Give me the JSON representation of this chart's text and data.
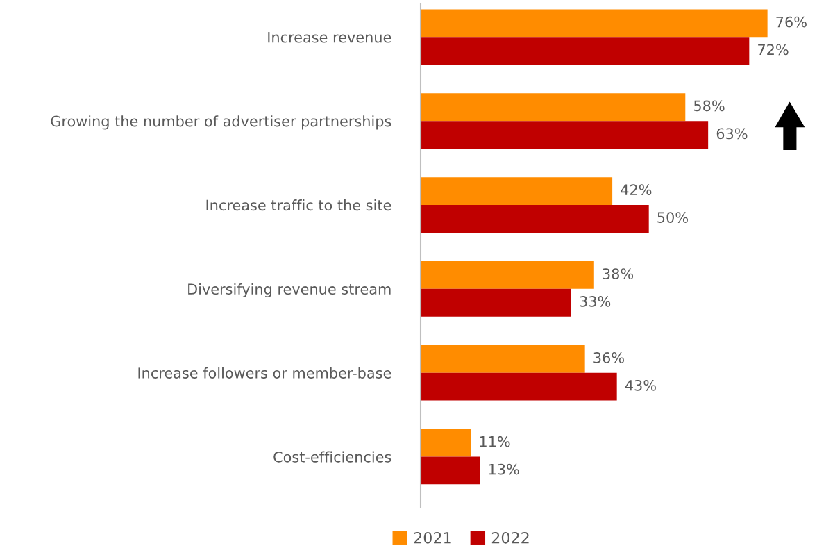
{
  "chart_data": {
    "type": "bar",
    "orientation": "horizontal",
    "categories": [
      "Increase revenue",
      "Growing the number of advertiser partnerships",
      "Increase traffic to the site",
      "Diversifying revenue stream",
      "Increase followers or member-base",
      "Cost-efficiencies"
    ],
    "series": [
      {
        "name": "2021",
        "color": "#ff8c00",
        "values": [
          76,
          58,
          42,
          38,
          36,
          11
        ],
        "value_labels": [
          "76%",
          "58%",
          "42%",
          "38%",
          "36%",
          "11%"
        ]
      },
      {
        "name": "2022",
        "color": "#c00000",
        "values": [
          72,
          63,
          50,
          33,
          43,
          13
        ],
        "value_labels": [
          "72%",
          "63%",
          "50%",
          "33%",
          "43%",
          "13%"
        ]
      }
    ],
    "tick_labels": "y",
    "grid": false,
    "legend": "bottom"
  }
}
